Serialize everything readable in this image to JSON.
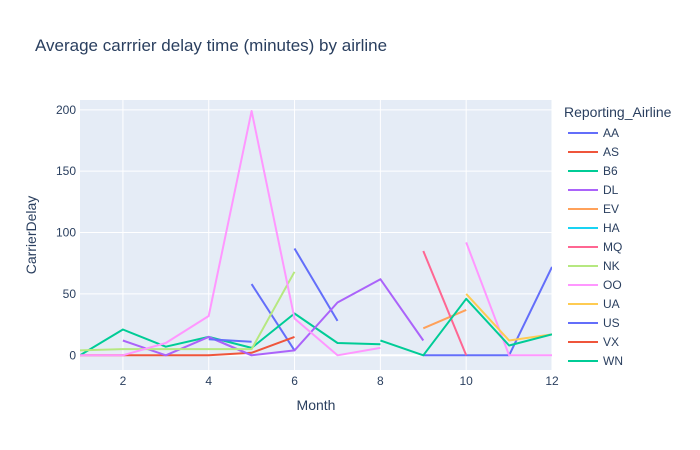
{
  "chart_data": {
    "type": "line",
    "title": "Average carrrier delay time (minutes) by airline",
    "xlabel": "Month",
    "ylabel": "CarrierDelay",
    "xlim": [
      1,
      12
    ],
    "ylim": [
      -12,
      208
    ],
    "xticks": [
      2,
      4,
      6,
      8,
      10,
      12
    ],
    "yticks": [
      0,
      50,
      100,
      150,
      200
    ],
    "grid": true,
    "legend_title": "Reporting_Airline",
    "legend_placement": "right",
    "series": [
      {
        "name": "AA",
        "color": "#636efa",
        "points": [
          [
            5,
            58
          ],
          [
            6,
            4
          ],
          [
            7,
            38
          ]
        ],
        "segments": [
          [
            [
              5,
              58
            ],
            [
              6,
              4
            ]
          ],
          [
            [
              6,
              87
            ],
            [
              7,
              28
            ]
          ],
          [
            [
              9,
              0
            ],
            [
              10,
              0
            ],
            [
              11,
              0
            ],
            [
              12,
              72
            ]
          ]
        ]
      },
      {
        "name": "AS",
        "color": "#EF553B",
        "segments": [
          [
            [
              1,
              0
            ],
            [
              2,
              0
            ],
            [
              3,
              0
            ],
            [
              4,
              0
            ],
            [
              5,
              2
            ],
            [
              6,
              15
            ]
          ]
        ]
      },
      {
        "name": "B6",
        "color": "#00cc96",
        "segments": [
          [
            [
              1,
              0
            ],
            [
              2,
              21
            ],
            [
              3,
              7
            ],
            [
              4,
              15
            ],
            [
              5,
              6
            ],
            [
              6,
              34
            ],
            [
              7,
              10
            ],
            [
              8,
              9
            ]
          ]
        ]
      },
      {
        "name": "DL",
        "color": "#ab63fa",
        "segments": [
          [
            [
              2,
              12
            ],
            [
              3,
              0
            ],
            [
              4,
              15
            ],
            [
              5,
              0
            ],
            [
              6,
              4
            ],
            [
              7,
              43
            ],
            [
              8,
              62
            ],
            [
              9,
              12
            ]
          ],
          [
            [
              4,
              15
            ],
            [
              5,
              0
            ]
          ]
        ]
      },
      {
        "name": "EV",
        "color": "#FFA15A",
        "segments": [
          [
            [
              9,
              22
            ],
            [
              10,
              37
            ]
          ]
        ]
      },
      {
        "name": "HA",
        "color": "#19d3f3",
        "segments": []
      },
      {
        "name": "MQ",
        "color": "#FF6692",
        "segments": [
          [
            [
              9,
              85
            ],
            [
              10,
              0
            ]
          ]
        ]
      },
      {
        "name": "NK",
        "color": "#B6E880",
        "segments": [
          [
            [
              1,
              4
            ],
            [
              2,
              5
            ],
            [
              3,
              5
            ],
            [
              4,
              5
            ],
            [
              5,
              5
            ],
            [
              6,
              68
            ]
          ]
        ]
      },
      {
        "name": "OO",
        "color": "#FF97FF",
        "segments": [
          [
            [
              1,
              0
            ],
            [
              2,
              0
            ],
            [
              3,
              10
            ],
            [
              4,
              32
            ],
            [
              5,
              199
            ],
            [
              6,
              30
            ],
            [
              7,
              0
            ],
            [
              8,
              6
            ]
          ],
          [
            [
              10,
              92
            ],
            [
              11,
              0
            ],
            [
              12,
              0
            ]
          ]
        ]
      },
      {
        "name": "UA",
        "color": "#FECB52",
        "segments": [
          [
            [
              10,
              50
            ],
            [
              11,
              12
            ],
            [
              12,
              17
            ]
          ]
        ]
      },
      {
        "name": "US",
        "color": "#636efa",
        "segments": [
          [
            [
              4,
              13
            ],
            [
              5,
              11
            ]
          ]
        ]
      },
      {
        "name": "VX",
        "color": "#EF553B",
        "segments": []
      },
      {
        "name": "WN",
        "color": "#00cc96",
        "segments": [
          [
            [
              8,
              12
            ],
            [
              9,
              0
            ],
            [
              10,
              46
            ],
            [
              11,
              8
            ],
            [
              12,
              17
            ]
          ]
        ]
      }
    ]
  }
}
